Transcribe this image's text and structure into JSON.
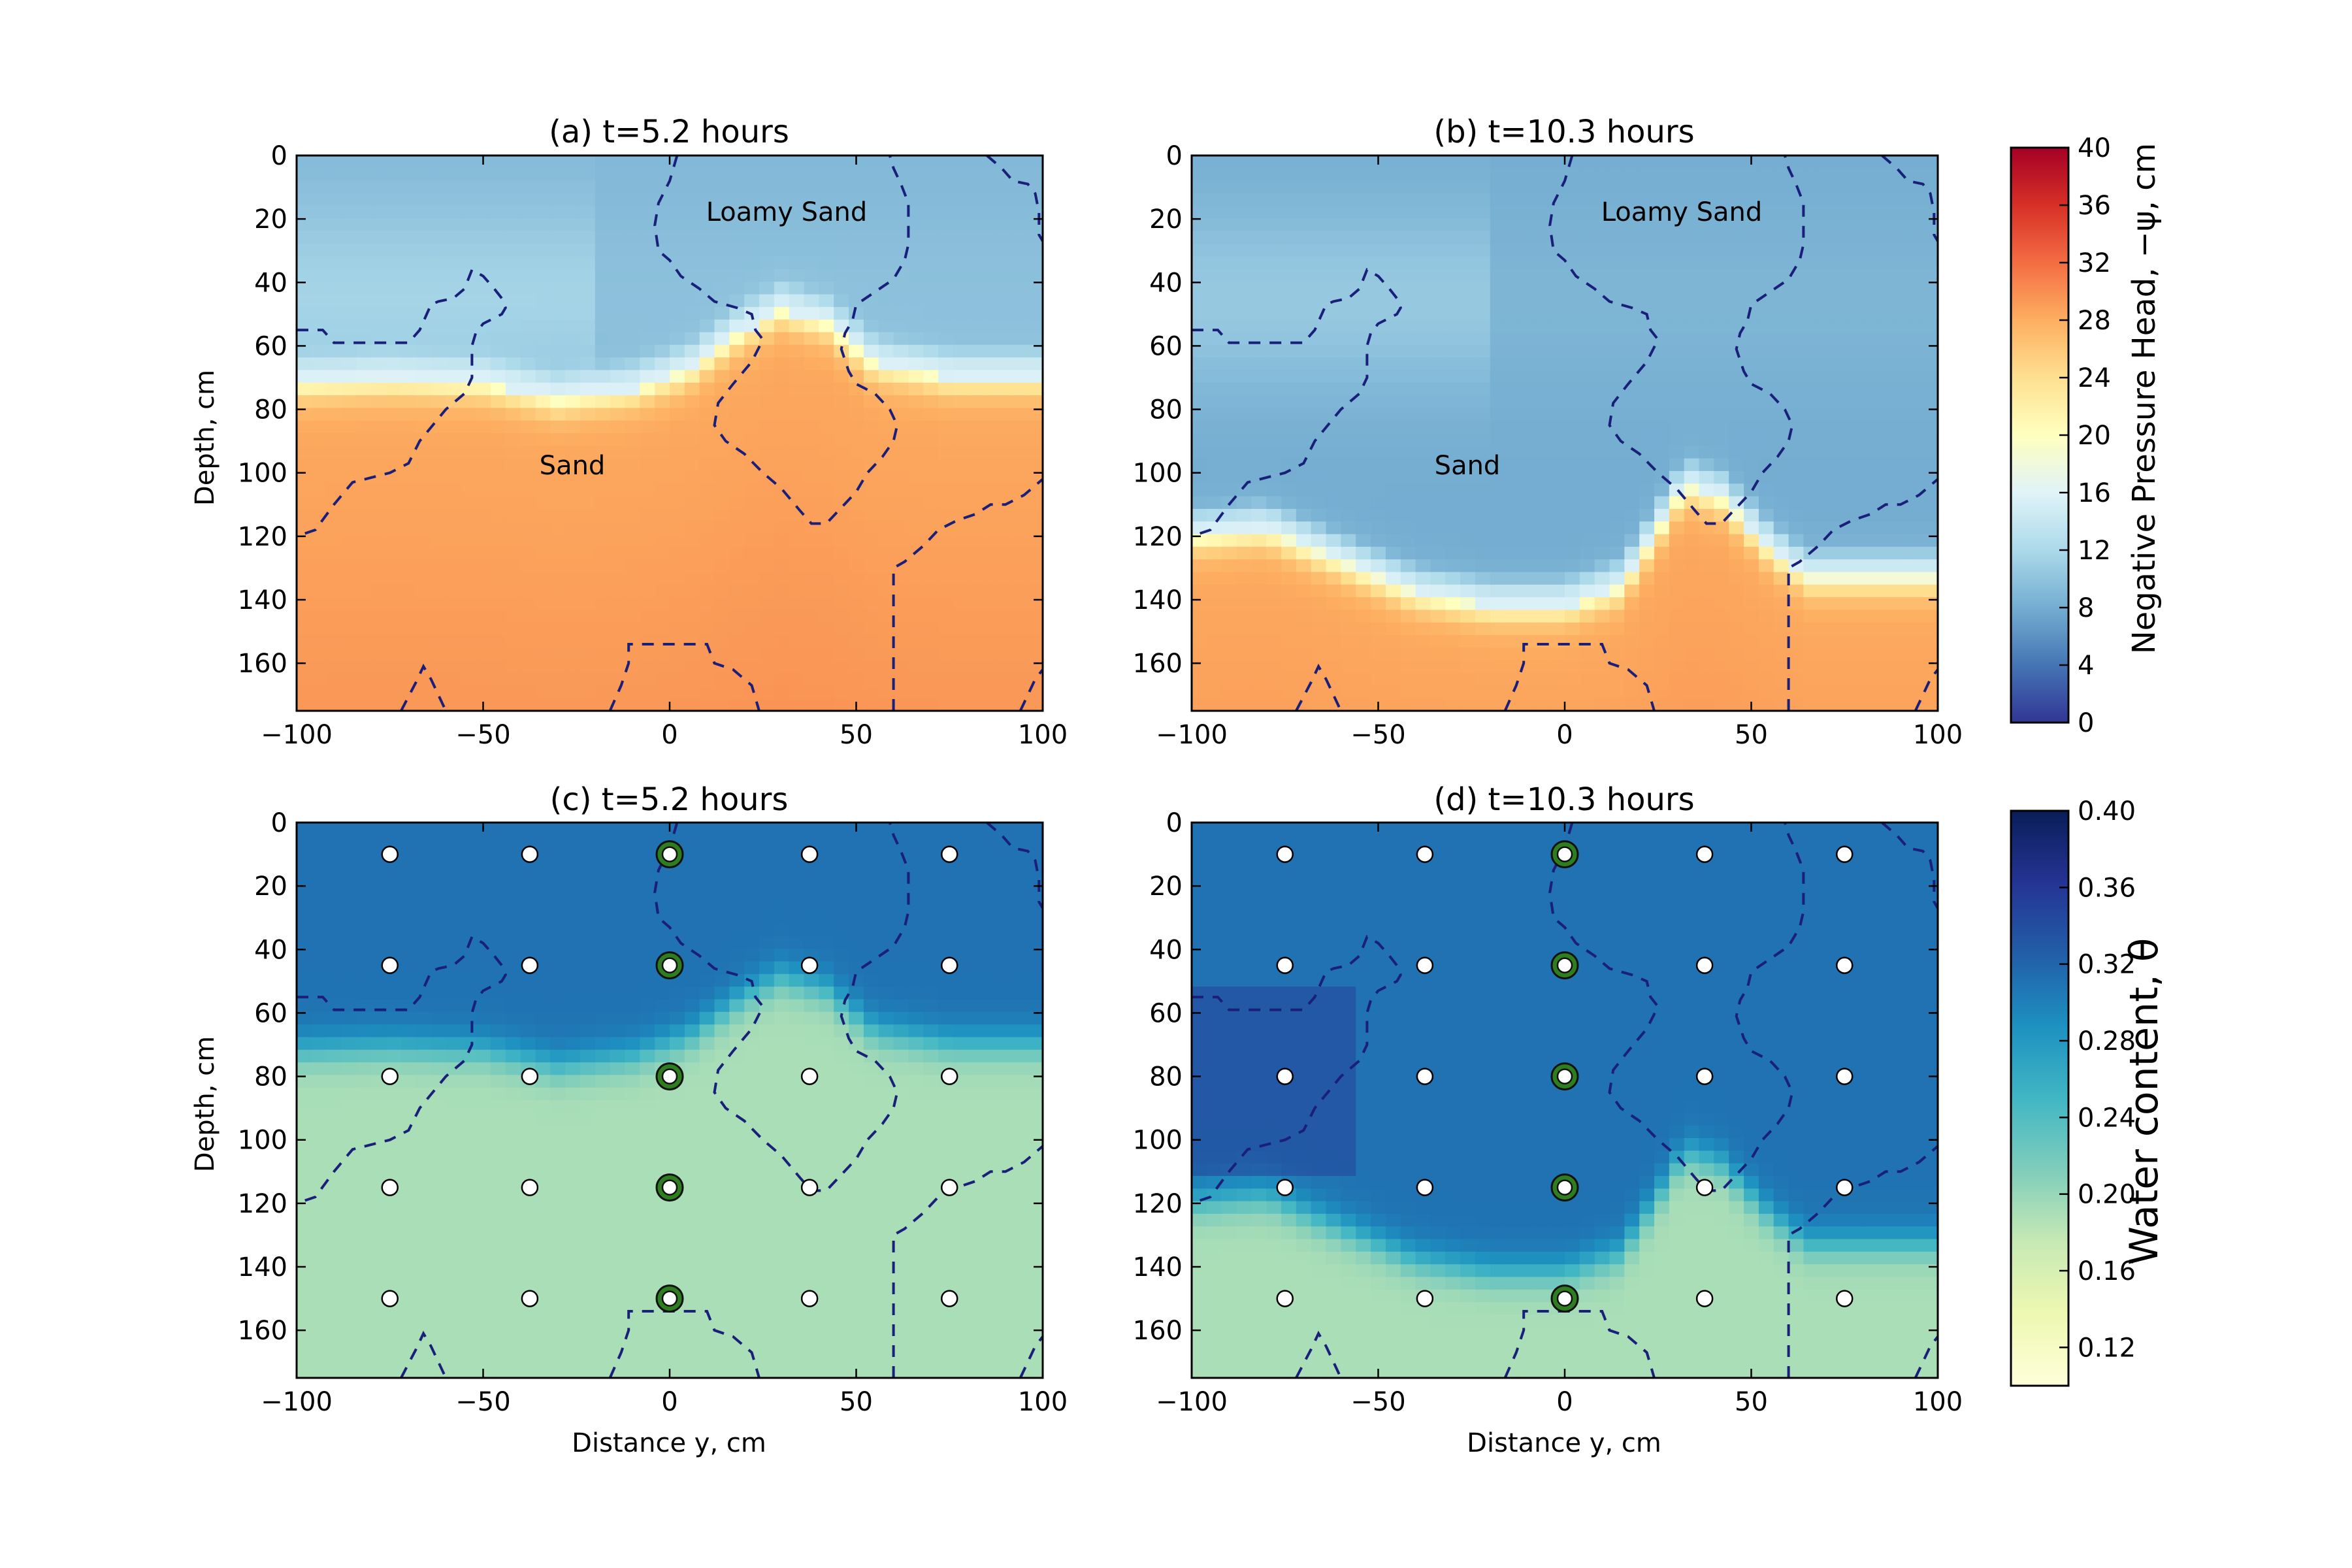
{
  "chart_data": [
    {
      "type": "heatmap",
      "title": "(a) t=5.2 hours",
      "xlabel": "",
      "ylabel": "Depth, cm",
      "xlim": [
        -100,
        100
      ],
      "ylim": [
        175,
        0
      ],
      "xticks": [
        "−100",
        "−50",
        "0",
        "50",
        "100"
      ],
      "yticks": [
        "0",
        "20",
        "40",
        "60",
        "80",
        "100",
        "120",
        "140",
        "160"
      ],
      "annotations": [
        "Loamy Sand",
        "Sand"
      ],
      "colormap": "Negative Pressure Head",
      "colorbar_range": [
        0,
        40
      ],
      "interface_depth_profile": [
        [
          -100,
          72
        ],
        [
          -75,
          71
        ],
        [
          -50,
          72
        ],
        [
          -30,
          77
        ],
        [
          -10,
          74
        ],
        [
          5,
          68
        ],
        [
          20,
          55
        ],
        [
          30,
          49
        ],
        [
          42,
          53
        ],
        [
          55,
          66
        ],
        [
          75,
          70
        ],
        [
          100,
          70
        ]
      ],
      "dry_value": 9,
      "wet_value": 29
    },
    {
      "type": "heatmap",
      "title": "(b) t=10.3 hours",
      "xlabel": "",
      "ylabel": "",
      "xlim": [
        -100,
        100
      ],
      "ylim": [
        175,
        0
      ],
      "xticks": [
        "−100",
        "−50",
        "0",
        "50",
        "100"
      ],
      "yticks": [
        "0",
        "20",
        "40",
        "60",
        "80",
        "100",
        "120",
        "140",
        "160"
      ],
      "annotations": [
        "Loamy Sand",
        "Sand"
      ],
      "colormap": "Negative Pressure Head",
      "colorbar_range": [
        0,
        40
      ],
      "interface_depth_profile": [
        [
          -100,
          120
        ],
        [
          -80,
          118
        ],
        [
          -60,
          128
        ],
        [
          -40,
          138
        ],
        [
          -20,
          142
        ],
        [
          0,
          142
        ],
        [
          15,
          136
        ],
        [
          25,
          118
        ],
        [
          32,
          104
        ],
        [
          42,
          108
        ],
        [
          55,
          124
        ],
        [
          65,
          133
        ],
        [
          100,
          133
        ]
      ],
      "dry_value": 8,
      "wet_value": 29
    },
    {
      "type": "heatmap",
      "title": "(c) t=5.2 hours",
      "xlabel": "Distance y, cm",
      "ylabel": "Depth, cm",
      "xlim": [
        -100,
        100
      ],
      "ylim": [
        175,
        0
      ],
      "xticks": [
        "−100",
        "−50",
        "0",
        "50",
        "100"
      ],
      "yticks": [
        "0",
        "20",
        "40",
        "60",
        "80",
        "100",
        "120",
        "140",
        "160"
      ],
      "colormap": "Water content",
      "colorbar_range": [
        0.1,
        0.4
      ],
      "sensor_columns_y": [
        -75,
        -37.5,
        0,
        37.5,
        75
      ],
      "sensor_depths": [
        10,
        45,
        80,
        115,
        150
      ],
      "highlighted_column_y": 0,
      "interface_depth_profile": [
        [
          -100,
          72
        ],
        [
          -75,
          71
        ],
        [
          -50,
          72
        ],
        [
          -30,
          77
        ],
        [
          -10,
          74
        ],
        [
          5,
          68
        ],
        [
          20,
          55
        ],
        [
          30,
          49
        ],
        [
          42,
          53
        ],
        [
          55,
          66
        ],
        [
          75,
          70
        ],
        [
          100,
          70
        ]
      ],
      "dry_value": 0.31,
      "wet_value": 0.19
    },
    {
      "type": "heatmap",
      "title": "(d) t=10.3 hours",
      "xlabel": "Distance y, cm",
      "ylabel": "",
      "xlim": [
        -100,
        100
      ],
      "ylim": [
        175,
        0
      ],
      "xticks": [
        "−100",
        "−50",
        "0",
        "50",
        "100"
      ],
      "yticks": [
        "0",
        "20",
        "40",
        "60",
        "80",
        "100",
        "120",
        "140",
        "160"
      ],
      "colormap": "Water content",
      "colorbar_range": [
        0.1,
        0.4
      ],
      "sensor_columns_y": [
        -75,
        -37.5,
        0,
        37.5,
        75
      ],
      "sensor_depths": [
        10,
        45,
        80,
        115,
        150
      ],
      "highlighted_column_y": 0,
      "interface_depth_profile": [
        [
          -100,
          120
        ],
        [
          -80,
          118
        ],
        [
          -60,
          128
        ],
        [
          -40,
          138
        ],
        [
          -20,
          142
        ],
        [
          0,
          142
        ],
        [
          15,
          136
        ],
        [
          25,
          118
        ],
        [
          32,
          104
        ],
        [
          42,
          108
        ],
        [
          55,
          124
        ],
        [
          65,
          133
        ],
        [
          100,
          133
        ]
      ],
      "dry_value": 0.31,
      "wet_value": 0.19
    }
  ],
  "boundaries": [
    [
      [
        -100,
        55
      ],
      [
        -93,
        55
      ],
      [
        -90,
        59
      ],
      [
        -84,
        59
      ],
      [
        -75,
        59
      ],
      [
        -70,
        59
      ],
      [
        -67,
        55
      ],
      [
        -64,
        47
      ],
      [
        -62,
        46
      ],
      [
        -58,
        45
      ],
      [
        -55,
        42
      ],
      [
        -53,
        36
      ],
      [
        -50,
        38
      ],
      [
        -47,
        42
      ],
      [
        -45,
        45
      ],
      [
        -44,
        48
      ],
      [
        -45,
        50
      ],
      [
        -50,
        53
      ],
      [
        -52,
        56
      ],
      [
        -53,
        60
      ],
      [
        -53,
        70
      ],
      [
        -55,
        75
      ],
      [
        -60,
        80
      ],
      [
        -67,
        90
      ],
      [
        -70,
        97
      ],
      [
        -75,
        100
      ],
      [
        -85,
        103
      ],
      [
        -90,
        110
      ],
      [
        -95,
        118
      ],
      [
        -100,
        120
      ]
    ],
    [
      [
        2,
        0
      ],
      [
        0,
        8
      ],
      [
        -3,
        15
      ],
      [
        -4,
        22
      ],
      [
        -3,
        30
      ],
      [
        0,
        33
      ],
      [
        3,
        38
      ],
      [
        8,
        42
      ],
      [
        12,
        46
      ],
      [
        18,
        48
      ],
      [
        22,
        50
      ],
      [
        23,
        55
      ],
      [
        25,
        58
      ],
      [
        22,
        65
      ],
      [
        17,
        72
      ],
      [
        13,
        78
      ],
      [
        12,
        85
      ],
      [
        15,
        90
      ],
      [
        20,
        94
      ],
      [
        25,
        100
      ],
      [
        30,
        105
      ],
      [
        35,
        112
      ],
      [
        38,
        116
      ],
      [
        42,
        116
      ],
      [
        46,
        111
      ],
      [
        50,
        106
      ],
      [
        53,
        100
      ],
      [
        57,
        95
      ],
      [
        60,
        90
      ],
      [
        61,
        85
      ],
      [
        59,
        80
      ],
      [
        55,
        75
      ],
      [
        50,
        72
      ],
      [
        48,
        68
      ],
      [
        46,
        61
      ],
      [
        47,
        56
      ],
      [
        49,
        52
      ],
      [
        50,
        47
      ],
      [
        55,
        43
      ],
      [
        60,
        39
      ],
      [
        63,
        33
      ],
      [
        64,
        28
      ],
      [
        64,
        22
      ],
      [
        64,
        15
      ],
      [
        62,
        9
      ],
      [
        60,
        4
      ],
      [
        59,
        0
      ]
    ],
    [
      [
        85,
        0
      ],
      [
        89,
        4
      ],
      [
        92,
        8
      ],
      [
        96,
        9
      ],
      [
        98,
        12
      ],
      [
        99,
        18
      ],
      [
        99,
        25
      ],
      [
        100,
        27
      ]
    ],
    [
      [
        60,
        175
      ],
      [
        60,
        140
      ],
      [
        60,
        130
      ],
      [
        63,
        128
      ],
      [
        68,
        123
      ],
      [
        72,
        118
      ],
      [
        77,
        115
      ],
      [
        82,
        113
      ],
      [
        86,
        110
      ],
      [
        90,
        110
      ],
      [
        95,
        107
      ],
      [
        100,
        102
      ]
    ],
    [
      [
        -72,
        175
      ],
      [
        -68,
        166
      ],
      [
        -66,
        161
      ],
      [
        -64,
        165
      ],
      [
        -62,
        170
      ],
      [
        -60,
        175
      ]
    ],
    [
      [
        -16,
        175
      ],
      [
        -13,
        167
      ],
      [
        -11,
        160
      ],
      [
        -11,
        154
      ],
      [
        0,
        154
      ],
      [
        10,
        154
      ],
      [
        12,
        160
      ],
      [
        17,
        162
      ],
      [
        22,
        167
      ],
      [
        24,
        175
      ]
    ],
    [
      [
        94,
        175
      ],
      [
        96,
        170
      ],
      [
        98,
        165
      ],
      [
        100,
        162
      ]
    ]
  ],
  "colorbars": [
    {
      "label": "Negative Pressure Head, −ψ, cm",
      "ticks": [
        "0",
        "4",
        "8",
        "12",
        "16",
        "20",
        "24",
        "28",
        "32",
        "36",
        "40"
      ],
      "range": [
        0,
        40
      ],
      "stops": [
        "#313695",
        "#4575b4",
        "#74add1",
        "#abd9e9",
        "#e0f3f8",
        "#ffffbf",
        "#fee090",
        "#fdae61",
        "#f46d43",
        "#d73027",
        "#a50026"
      ]
    },
    {
      "label": "Water content, θ",
      "ticks": [
        "0.12",
        "0.16",
        "0.20",
        "0.24",
        "0.28",
        "0.32",
        "0.36",
        "0.40"
      ],
      "range": [
        0.1,
        0.4
      ],
      "stops": [
        "#ffffd9",
        "#edf8b1",
        "#c7e9b4",
        "#7fcdbb",
        "#41b6c4",
        "#1d91c0",
        "#225ea8",
        "#253494",
        "#081d58"
      ]
    }
  ],
  "colors": {
    "boundary_line": "#1a1f7a",
    "sensor_fill": "#ffffff",
    "highlight_sensor_fill": "#2e7d1f",
    "highlight_sensor_ring": "#111111"
  }
}
